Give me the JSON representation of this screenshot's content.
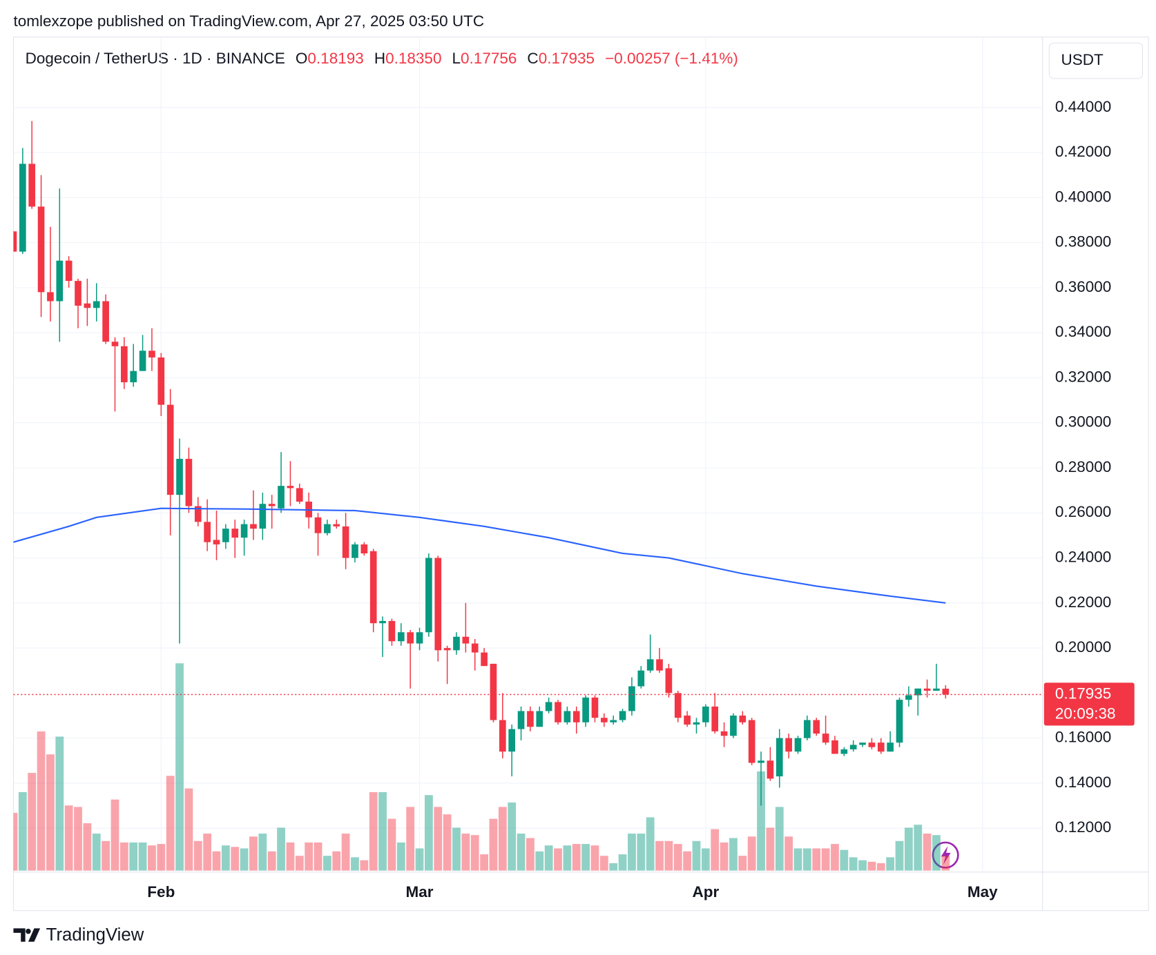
{
  "chart_data": {
    "type": "candlestick",
    "header": "tomlexzope published on TradingView.com, Apr 27, 2025 03:50 UTC",
    "symbol": "Dogecoin / TetherUS · 1D · BINANCE",
    "ohlc_legend": [
      {
        "key": "O",
        "value": "0.18193"
      },
      {
        "key": "H",
        "value": "0.18350"
      },
      {
        "key": "L",
        "value": "0.17756"
      },
      {
        "key": "C",
        "value": "0.17935"
      }
    ],
    "change": "−0.00257 (−1.41%)",
    "currency": "USDT",
    "countdown": "20:09:38",
    "footer_brand": "TradingView",
    "up_color": "#089981",
    "down_color": "#f23645",
    "ma_color": "#2962ff",
    "xlim": [
      0,
      111.5
    ],
    "xticks": [
      {
        "value": 16,
        "label": "Feb"
      },
      {
        "value": 44,
        "label": "Mar"
      },
      {
        "value": 75,
        "label": "Apr"
      },
      {
        "value": 105,
        "label": "May"
      }
    ],
    "ylim": [
      0.1005,
      0.4713
    ],
    "yticks": [
      {
        "value": 0.44,
        "label": "0.44000"
      },
      {
        "value": 0.42,
        "label": "0.42000"
      },
      {
        "value": 0.4,
        "label": "0.40000"
      },
      {
        "value": 0.38,
        "label": "0.38000"
      },
      {
        "value": 0.36,
        "label": "0.36000"
      },
      {
        "value": 0.34,
        "label": "0.34000"
      },
      {
        "value": 0.32,
        "label": "0.32000"
      },
      {
        "value": 0.3,
        "label": "0.30000"
      },
      {
        "value": 0.28,
        "label": "0.28000"
      },
      {
        "value": 0.26,
        "label": "0.26000"
      },
      {
        "value": 0.24,
        "label": "0.24000"
      },
      {
        "value": 0.22,
        "label": "0.22000"
      },
      {
        "value": 0.2,
        "label": "0.20000"
      },
      {
        "value": 0.16,
        "label": "0.16000"
      },
      {
        "value": 0.14,
        "label": "0.14000"
      },
      {
        "value": 0.12,
        "label": "0.12000"
      }
    ],
    "grid": true,
    "ohlc": [
      [
        0.385,
        0.385,
        0.376,
        0.376
      ],
      [
        0.376,
        0.422,
        0.375,
        0.415
      ],
      [
        0.415,
        0.434,
        0.395,
        0.396
      ],
      [
        0.396,
        0.41,
        0.347,
        0.358
      ],
      [
        0.358,
        0.387,
        0.345,
        0.354
      ],
      [
        0.354,
        0.404,
        0.336,
        0.372
      ],
      [
        0.372,
        0.374,
        0.36,
        0.363
      ],
      [
        0.363,
        0.364,
        0.342,
        0.352
      ],
      [
        0.353,
        0.364,
        0.343,
        0.351
      ],
      [
        0.351,
        0.362,
        0.345,
        0.354
      ],
      [
        0.354,
        0.357,
        0.335,
        0.336
      ],
      [
        0.336,
        0.338,
        0.305,
        0.334
      ],
      [
        0.334,
        0.338,
        0.315,
        0.318
      ],
      [
        0.318,
        0.335,
        0.316,
        0.323
      ],
      [
        0.323,
        0.339,
        0.323,
        0.332
      ],
      [
        0.332,
        0.342,
        0.323,
        0.329
      ],
      [
        0.329,
        0.331,
        0.303,
        0.308
      ],
      [
        0.308,
        0.315,
        0.25,
        0.268
      ],
      [
        0.268,
        0.293,
        0.202,
        0.284
      ],
      [
        0.284,
        0.289,
        0.26,
        0.263
      ],
      [
        0.263,
        0.267,
        0.254,
        0.256
      ],
      [
        0.256,
        0.266,
        0.243,
        0.247
      ],
      [
        0.248,
        0.261,
        0.239,
        0.246
      ],
      [
        0.247,
        0.255,
        0.244,
        0.253
      ],
      [
        0.253,
        0.257,
        0.24,
        0.249
      ],
      [
        0.249,
        0.257,
        0.241,
        0.255
      ],
      [
        0.255,
        0.27,
        0.248,
        0.253
      ],
      [
        0.253,
        0.269,
        0.248,
        0.264
      ],
      [
        0.264,
        0.268,
        0.253,
        0.263
      ],
      [
        0.262,
        0.287,
        0.26,
        0.272
      ],
      [
        0.272,
        0.283,
        0.263,
        0.271
      ],
      [
        0.271,
        0.273,
        0.264,
        0.265
      ],
      [
        0.265,
        0.269,
        0.253,
        0.258
      ],
      [
        0.258,
        0.26,
        0.241,
        0.251
      ],
      [
        0.251,
        0.257,
        0.25,
        0.255
      ],
      [
        0.255,
        0.257,
        0.253,
        0.254
      ],
      [
        0.254,
        0.26,
        0.235,
        0.24
      ],
      [
        0.24,
        0.247,
        0.238,
        0.246
      ],
      [
        0.246,
        0.247,
        0.241,
        0.242
      ],
      [
        0.243,
        0.244,
        0.207,
        0.211
      ],
      [
        0.211,
        0.214,
        0.196,
        0.212
      ],
      [
        0.212,
        0.213,
        0.201,
        0.203
      ],
      [
        0.203,
        0.211,
        0.201,
        0.207
      ],
      [
        0.207,
        0.208,
        0.182,
        0.202
      ],
      [
        0.202,
        0.209,
        0.199,
        0.207
      ],
      [
        0.207,
        0.242,
        0.205,
        0.24
      ],
      [
        0.24,
        0.241,
        0.194,
        0.199
      ],
      [
        0.2,
        0.201,
        0.184,
        0.199
      ],
      [
        0.199,
        0.207,
        0.197,
        0.205
      ],
      [
        0.205,
        0.22,
        0.198,
        0.202
      ],
      [
        0.202,
        0.204,
        0.19,
        0.198
      ],
      [
        0.198,
        0.2,
        0.192,
        0.192
      ],
      [
        0.193,
        0.193,
        0.167,
        0.168
      ],
      [
        0.168,
        0.18,
        0.151,
        0.154
      ],
      [
        0.154,
        0.166,
        0.143,
        0.164
      ],
      [
        0.164,
        0.174,
        0.159,
        0.172
      ],
      [
        0.172,
        0.174,
        0.163,
        0.165
      ],
      [
        0.165,
        0.174,
        0.165,
        0.172
      ],
      [
        0.172,
        0.178,
        0.171,
        0.176
      ],
      [
        0.176,
        0.177,
        0.166,
        0.167
      ],
      [
        0.167,
        0.174,
        0.166,
        0.172
      ],
      [
        0.172,
        0.174,
        0.162,
        0.167
      ],
      [
        0.167,
        0.179,
        0.165,
        0.178
      ],
      [
        0.178,
        0.179,
        0.167,
        0.169
      ],
      [
        0.169,
        0.171,
        0.165,
        0.167
      ],
      [
        0.167,
        0.17,
        0.166,
        0.168
      ],
      [
        0.168,
        0.173,
        0.167,
        0.172
      ],
      [
        0.172,
        0.187,
        0.17,
        0.183
      ],
      [
        0.183,
        0.192,
        0.182,
        0.19
      ],
      [
        0.19,
        0.206,
        0.189,
        0.195
      ],
      [
        0.195,
        0.2,
        0.189,
        0.19
      ],
      [
        0.191,
        0.193,
        0.178,
        0.18
      ],
      [
        0.18,
        0.181,
        0.167,
        0.169
      ],
      [
        0.17,
        0.172,
        0.165,
        0.166
      ],
      [
        0.166,
        0.169,
        0.162,
        0.167
      ],
      [
        0.167,
        0.175,
        0.165,
        0.174
      ],
      [
        0.174,
        0.18,
        0.162,
        0.163
      ],
      [
        0.163,
        0.167,
        0.156,
        0.161
      ],
      [
        0.161,
        0.171,
        0.16,
        0.17
      ],
      [
        0.17,
        0.172,
        0.166,
        0.167
      ],
      [
        0.168,
        0.169,
        0.148,
        0.149
      ],
      [
        0.149,
        0.154,
        0.13,
        0.15
      ],
      [
        0.15,
        0.156,
        0.141,
        0.142
      ],
      [
        0.143,
        0.164,
        0.138,
        0.16
      ],
      [
        0.16,
        0.162,
        0.151,
        0.154
      ],
      [
        0.154,
        0.161,
        0.153,
        0.16
      ],
      [
        0.16,
        0.17,
        0.159,
        0.168
      ],
      [
        0.168,
        0.169,
        0.161,
        0.162
      ],
      [
        0.162,
        0.17,
        0.157,
        0.158
      ],
      [
        0.159,
        0.161,
        0.153,
        0.153
      ],
      [
        0.153,
        0.156,
        0.152,
        0.155
      ],
      [
        0.155,
        0.159,
        0.154,
        0.157
      ],
      [
        0.157,
        0.158,
        0.156,
        0.158
      ],
      [
        0.158,
        0.16,
        0.155,
        0.156
      ],
      [
        0.158,
        0.16,
        0.153,
        0.154
      ],
      [
        0.154,
        0.163,
        0.154,
        0.158
      ],
      [
        0.158,
        0.178,
        0.156,
        0.177
      ],
      [
        0.177,
        0.183,
        0.174,
        0.179
      ],
      [
        0.179,
        0.182,
        0.17,
        0.182
      ],
      [
        0.182,
        0.186,
        0.178,
        0.181
      ],
      [
        0.181,
        0.193,
        0.181,
        0.182
      ],
      [
        0.18193,
        0.1835,
        0.17756,
        0.17935
      ]
    ],
    "volume": [
      78,
      106,
      132,
      188,
      157,
      181,
      88,
      86,
      64,
      50,
      40,
      96,
      38,
      38,
      38,
      34,
      36,
      128,
      280,
      111,
      40,
      50,
      26,
      34,
      32,
      30,
      46,
      50,
      26,
      58,
      38,
      20,
      38,
      38,
      20,
      26,
      50,
      18,
      14,
      106,
      106,
      70,
      38,
      86,
      30,
      102,
      86,
      76,
      58,
      50,
      48,
      22,
      70,
      86,
      92,
      50,
      44,
      26,
      34,
      30,
      34,
      36,
      36,
      34,
      20,
      10,
      22,
      50,
      50,
      72,
      40,
      40,
      36,
      26,
      40,
      30,
      56,
      38,
      44,
      20,
      46,
      134,
      58,
      86,
      46,
      30,
      30,
      30,
      30,
      36,
      28,
      18,
      14,
      12,
      10,
      18,
      40,
      58,
      62,
      50,
      48,
      20
    ],
    "ma": {
      "x": [
        0,
        6,
        9,
        16,
        25,
        37,
        44,
        51,
        58,
        66,
        71,
        79,
        87,
        95,
        101
      ],
      "values": [
        0.247,
        0.254,
        0.258,
        0.262,
        0.2617,
        0.261,
        0.258,
        0.254,
        0.249,
        0.242,
        0.24,
        0.233,
        0.2275,
        0.223,
        0.22
      ]
    }
  }
}
